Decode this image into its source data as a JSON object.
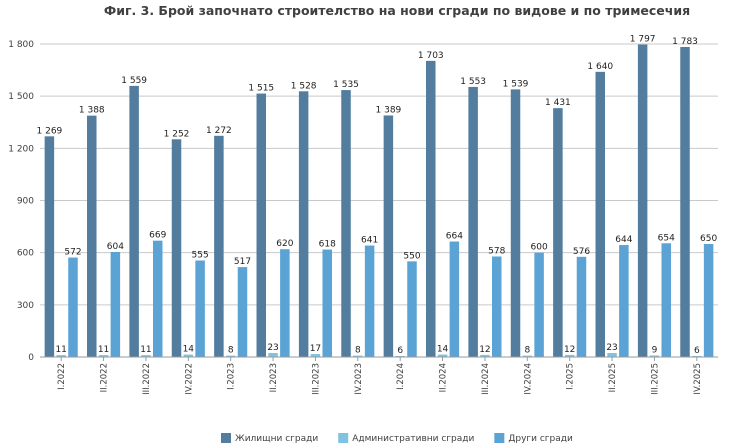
{
  "chart_data": {
    "type": "bar",
    "title": "Фиг. 3. Брой започнато строителство на нови сгради по видове и по тримесечия",
    "categories": [
      "I.2022",
      "II.2022",
      "III.2022",
      "IV.2022",
      "I.2023",
      "II.2023",
      "III.2023",
      "IV.2023",
      "I.2024",
      "II.2024",
      "III.2024",
      "IV.2024",
      "I.2025",
      "II.2025",
      "III.2025",
      "IV.2025"
    ],
    "series": [
      {
        "name": "Жилищни сгради",
        "color": "#527d9e",
        "values": [
          1269,
          1388,
          1559,
          1252,
          1272,
          1515,
          1528,
          1535,
          1389,
          1703,
          1553,
          1539,
          1431,
          1640,
          1797,
          1783
        ]
      },
      {
        "name": "Административни сгради",
        "color": "#80c3e0",
        "values": [
          11,
          11,
          11,
          14,
          8,
          23,
          17,
          8,
          6,
          14,
          12,
          8,
          12,
          23,
          9,
          6
        ]
      },
      {
        "name": "Други сгради",
        "color": "#5ba3d5",
        "values": [
          572,
          604,
          669,
          555,
          517,
          620,
          618,
          641,
          550,
          664,
          578,
          600,
          576,
          644,
          654,
          650
        ]
      }
    ],
    "ylim": [
      0,
      1800
    ],
    "yticks": [
      0,
      300,
      600,
      900,
      1200,
      1500,
      1800
    ],
    "ytick_labels": [
      "0",
      "300",
      "600",
      "900",
      "1 200",
      "1 500",
      "1 800"
    ],
    "grid": true,
    "legend_position": "bottom-center"
  }
}
